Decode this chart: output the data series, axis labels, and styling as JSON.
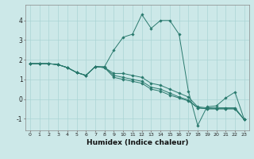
{
  "xlabel": "Humidex (Indice chaleur)",
  "xlim": [
    -0.5,
    23.5
  ],
  "ylim": [
    -1.6,
    4.8
  ],
  "yticks": [
    -1,
    0,
    1,
    2,
    3,
    4
  ],
  "xticks": [
    0,
    1,
    2,
    3,
    4,
    5,
    6,
    7,
    8,
    9,
    10,
    11,
    12,
    13,
    14,
    15,
    16,
    17,
    18,
    19,
    20,
    21,
    22,
    23
  ],
  "bg_color": "#cce8e8",
  "grid_color": "#aad4d4",
  "line_color": "#2a7a6e",
  "series": [
    [
      1.8,
      1.8,
      1.8,
      1.75,
      1.6,
      1.35,
      1.2,
      1.65,
      1.65,
      2.5,
      3.15,
      3.3,
      4.3,
      3.6,
      4.0,
      4.0,
      3.3,
      0.4,
      -1.35,
      -0.4,
      -0.35,
      0.05,
      0.35,
      -1.05
    ],
    [
      1.8,
      1.8,
      1.8,
      1.75,
      1.6,
      1.35,
      1.2,
      1.65,
      1.6,
      1.3,
      1.3,
      1.2,
      1.1,
      0.8,
      0.7,
      0.5,
      0.3,
      0.1,
      -0.4,
      -0.45,
      -0.45,
      -0.45,
      -0.45,
      -1.05
    ],
    [
      1.8,
      1.8,
      1.8,
      1.75,
      1.6,
      1.35,
      1.2,
      1.65,
      1.6,
      1.2,
      1.1,
      1.0,
      0.9,
      0.6,
      0.5,
      0.3,
      0.1,
      -0.05,
      -0.45,
      -0.5,
      -0.5,
      -0.5,
      -0.5,
      -1.05
    ],
    [
      1.8,
      1.8,
      1.8,
      1.75,
      1.6,
      1.35,
      1.2,
      1.65,
      1.6,
      1.1,
      1.0,
      0.9,
      0.8,
      0.5,
      0.4,
      0.2,
      0.05,
      -0.1,
      -0.45,
      -0.5,
      -0.5,
      -0.5,
      -0.5,
      -1.05
    ]
  ]
}
